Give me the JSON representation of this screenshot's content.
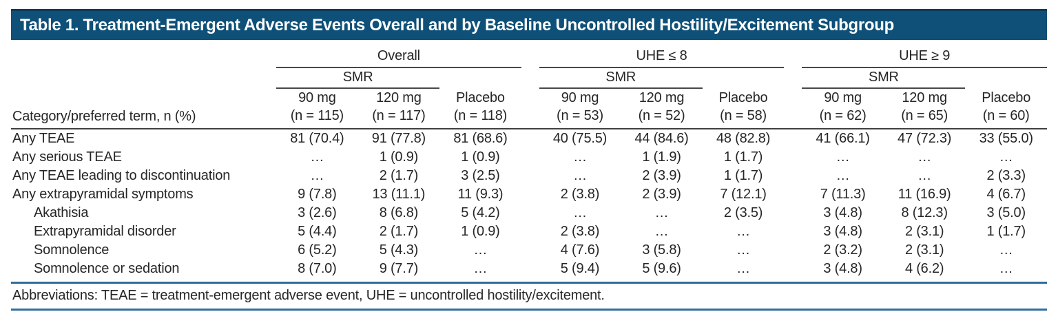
{
  "title": "Table 1. Treatment-Emergent Adverse Events Overall and by Baseline Uncontrolled Hostility/Excitement Subgroup",
  "colors": {
    "title_bar": "#0e5078",
    "rule_blue": "#2e6d9f",
    "rule_dark": "#3f3f3f"
  },
  "table": {
    "category_header": "Category/preferred term, n (%)",
    "smr_label": "SMR",
    "groups": [
      {
        "label": "Overall",
        "columns": [
          {
            "dose": "90 mg",
            "n": "(n = 115)"
          },
          {
            "dose": "120 mg",
            "n": "(n = 117)"
          },
          {
            "dose": "Placebo",
            "n": "(n = 118)"
          }
        ]
      },
      {
        "label": "UHE ≤ 8",
        "columns": [
          {
            "dose": "90 mg",
            "n": "(n = 53)"
          },
          {
            "dose": "120 mg",
            "n": "(n = 52)"
          },
          {
            "dose": "Placebo",
            "n": "(n = 58)"
          }
        ]
      },
      {
        "label": "UHE ≥ 9",
        "columns": [
          {
            "dose": "90 mg",
            "n": "(n = 62)"
          },
          {
            "dose": "120 mg",
            "n": "(n = 65)"
          },
          {
            "dose": "Placebo",
            "n": "(n = 60)"
          }
        ]
      }
    ],
    "rows": [
      {
        "label": "Any TEAE",
        "indent": false,
        "values": [
          "81 (70.4)",
          "91 (77.8)",
          "81 (68.6)",
          "40 (75.5)",
          "44 (84.6)",
          "48 (82.8)",
          "41 (66.1)",
          "47 (72.3)",
          "33 (55.0)"
        ]
      },
      {
        "label": "Any serious TEAE",
        "indent": false,
        "values": [
          "…",
          "1 (0.9)",
          "1 (0.9)",
          "…",
          "1 (1.9)",
          "1 (1.7)",
          "…",
          "…",
          "…"
        ]
      },
      {
        "label": "Any TEAE leading to discontinuation",
        "indent": false,
        "values": [
          "…",
          "2 (1.7)",
          "3 (2.5)",
          "…",
          "2 (3.9)",
          "1 (1.7)",
          "…",
          "…",
          "2 (3.3)"
        ]
      },
      {
        "label": "Any extrapyramidal symptoms",
        "indent": false,
        "values": [
          "9 (7.8)",
          "13 (11.1)",
          "11 (9.3)",
          "2 (3.8)",
          "2 (3.9)",
          "7 (12.1)",
          "7 (11.3)",
          "11 (16.9)",
          "4 (6.7)"
        ]
      },
      {
        "label": "Akathisia",
        "indent": true,
        "values": [
          "3 (2.6)",
          "8 (6.8)",
          "5 (4.2)",
          "…",
          "…",
          "2 (3.5)",
          "3 (4.8)",
          "8 (12.3)",
          "3 (5.0)"
        ]
      },
      {
        "label": "Extrapyramidal disorder",
        "indent": true,
        "values": [
          "5 (4.4)",
          "2 (1.7)",
          "1 (0.9)",
          "2 (3.8)",
          "…",
          "…",
          "3 (4.8)",
          "2 (3.1)",
          "1 (1.7)"
        ]
      },
      {
        "label": "Somnolence",
        "indent": true,
        "values": [
          "6 (5.2)",
          "5 (4.3)",
          "…",
          "4 (7.6)",
          "3 (5.8)",
          "…",
          "2 (3.2)",
          "2 (3.1)",
          "…"
        ]
      },
      {
        "label": "Somnolence or sedation",
        "indent": true,
        "values": [
          "8 (7.0)",
          "9 (7.7)",
          "…",
          "5 (9.4)",
          "5 (9.6)",
          "…",
          "3 (4.8)",
          "4 (6.2)",
          "…"
        ]
      }
    ]
  },
  "footnote": "Abbreviations: TEAE = treatment-emergent adverse event, UHE = uncontrolled hostility/excitement."
}
